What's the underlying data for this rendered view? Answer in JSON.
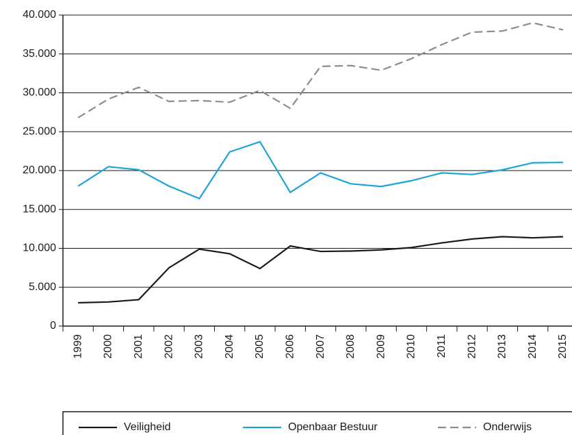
{
  "chart_data": {
    "type": "line",
    "categories": [
      "1999",
      "2000",
      "2001",
      "2002",
      "2003",
      "2004",
      "2005",
      "2006",
      "2007",
      "2008",
      "2009",
      "2010",
      "2011",
      "2012",
      "2013",
      "2014",
      "2015"
    ],
    "series": [
      {
        "name": "Veiligheid",
        "color": "#1a1a1a",
        "dash": false,
        "values": [
          3000,
          3100,
          3400,
          7500,
          9900,
          9300,
          7400,
          10300,
          9600,
          9650,
          9800,
          10100,
          10700,
          11200,
          11500,
          11350,
          11500
        ]
      },
      {
        "name": "Openbaar Bestuur",
        "color": "#1ba3da",
        "dash": false,
        "values": [
          18000,
          20500,
          20100,
          18000,
          16400,
          22400,
          23700,
          17200,
          19700,
          18300,
          17950,
          18700,
          19700,
          19500,
          20100,
          21000,
          21050
        ]
      },
      {
        "name": "Onderwijs",
        "color": "#8c8c8c",
        "dash": true,
        "values": [
          26800,
          29200,
          30700,
          28900,
          29000,
          28800,
          30300,
          28000,
          33400,
          33500,
          32900,
          34400,
          36200,
          37800,
          37950,
          39000,
          38100
        ]
      }
    ],
    "ylim": [
      0,
      40000
    ],
    "yticks": [
      0,
      {
        "value": 5000,
        "label": "5.000"
      },
      {
        "value": 10000,
        "label": "10.000"
      },
      {
        "value": 15000,
        "label": "15.000"
      },
      {
        "value": 20000,
        "label": "20.000"
      },
      {
        "value": 25000,
        "label": "25.000"
      },
      {
        "value": 30000,
        "label": "30.000"
      },
      {
        "value": 35000,
        "label": "35.000"
      },
      {
        "value": 40000,
        "label": "40.000"
      }
    ],
    "grid": true,
    "legend": "bottom"
  }
}
